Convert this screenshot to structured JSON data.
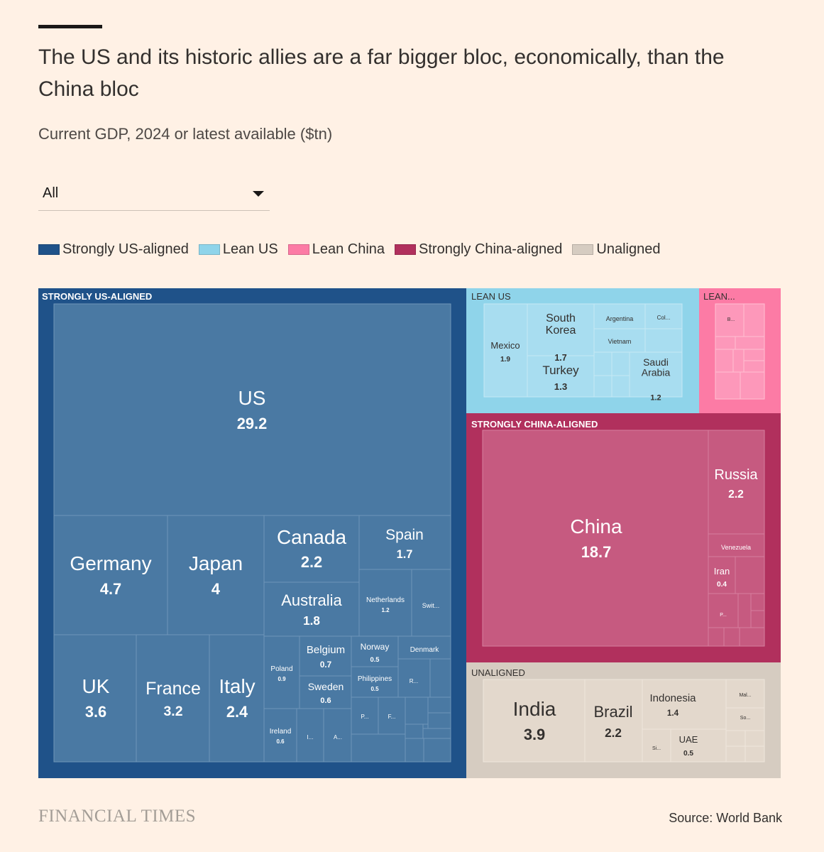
{
  "title": "The US and its historic allies are a far bigger bloc, economically, than the China bloc",
  "subtitle": "Current GDP, 2024 or latest available ($tn)",
  "dropdown": {
    "selected": "All"
  },
  "legend": [
    {
      "label": "Strongly US-aligned",
      "color": "#1f5289"
    },
    {
      "label": "Lean US",
      "color": "#8fd4ea"
    },
    {
      "label": "Lean China",
      "color": "#fc7ba5"
    },
    {
      "label": "Strongly China-aligned",
      "color": "#b1305d"
    },
    {
      "label": "Unaligned",
      "color": "#d6ccc1"
    }
  ],
  "chart_data": {
    "type": "treemap",
    "unit": "$tn",
    "groups": [
      {
        "label": "STRONGLY US-ALIGNED",
        "countries": [
          {
            "name": "US",
            "value": 29.2
          },
          {
            "name": "Germany",
            "value": 4.7
          },
          {
            "name": "Japan",
            "value": 4
          },
          {
            "name": "Canada",
            "value": 2.2
          },
          {
            "name": "Spain",
            "value": 1.7
          },
          {
            "name": "Australia",
            "value": 1.8
          },
          {
            "name": "Netherlands",
            "value": 1.2
          },
          {
            "name": "Swit...",
            "value": null
          },
          {
            "name": "UK",
            "value": 3.6
          },
          {
            "name": "France",
            "value": 3.2
          },
          {
            "name": "Italy",
            "value": 2.4
          },
          {
            "name": "Poland",
            "value": 0.9
          },
          {
            "name": "Belgium",
            "value": 0.7
          },
          {
            "name": "Sweden",
            "value": 0.6
          },
          {
            "name": "Norway",
            "value": 0.5
          },
          {
            "name": "Philippines",
            "value": 0.5
          },
          {
            "name": "Denmark",
            "value": null
          },
          {
            "name": "Ireland",
            "value": 0.6
          },
          {
            "name": "I...",
            "value": null
          },
          {
            "name": "A...",
            "value": null
          },
          {
            "name": "P...",
            "value": null
          },
          {
            "name": "F...",
            "value": null
          },
          {
            "name": "R...",
            "value": null
          }
        ]
      },
      {
        "label": "LEAN US",
        "countries": [
          {
            "name": "Mexico",
            "value": 1.9
          },
          {
            "name": "South Korea",
            "value": 1.7
          },
          {
            "name": "Turkey",
            "value": 1.3
          },
          {
            "name": "Argentina",
            "value": null
          },
          {
            "name": "Col...",
            "value": null
          },
          {
            "name": "Vietnam",
            "value": null
          },
          {
            "name": "Saudi Arabia",
            "value": 1.2
          }
        ]
      },
      {
        "label": "LEAN...",
        "countries": [
          {
            "name": "B...",
            "value": null
          }
        ]
      },
      {
        "label": "STRONGLY CHINA-ALIGNED",
        "countries": [
          {
            "name": "China",
            "value": 18.7
          },
          {
            "name": "Russia",
            "value": 2.2
          },
          {
            "name": "Venezuela",
            "value": null
          },
          {
            "name": "Iran",
            "value": 0.4
          },
          {
            "name": "P...",
            "value": null
          }
        ]
      },
      {
        "label": "UNALIGNED",
        "countries": [
          {
            "name": "India",
            "value": 3.9
          },
          {
            "name": "Brazil",
            "value": 2.2
          },
          {
            "name": "Indonesia",
            "value": 1.4
          },
          {
            "name": "UAE",
            "value": 0.5
          },
          {
            "name": "Si...",
            "value": null
          },
          {
            "name": "Mal...",
            "value": null
          },
          {
            "name": "So...",
            "value": null
          }
        ]
      }
    ]
  },
  "footer": {
    "brand": "FINANCIAL TIMES",
    "source": "Source: World Bank"
  }
}
